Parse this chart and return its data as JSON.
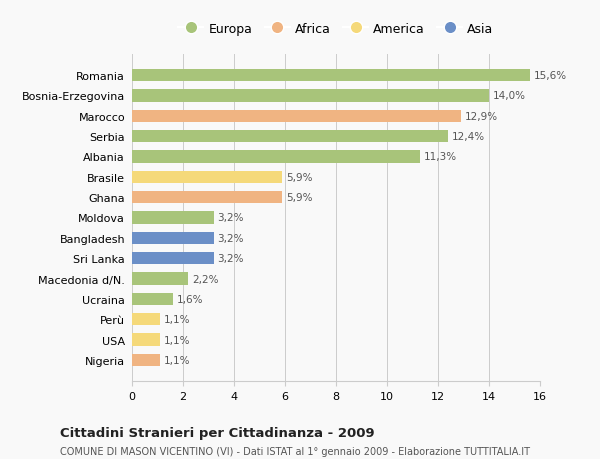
{
  "categories": [
    "Romania",
    "Bosnia-Erzegovina",
    "Marocco",
    "Serbia",
    "Albania",
    "Brasile",
    "Ghana",
    "Moldova",
    "Bangladesh",
    "Sri Lanka",
    "Macedonia d/N.",
    "Ucraina",
    "Perù",
    "USA",
    "Nigeria"
  ],
  "values": [
    15.6,
    14.0,
    12.9,
    12.4,
    11.3,
    5.9,
    5.9,
    3.2,
    3.2,
    3.2,
    2.2,
    1.6,
    1.1,
    1.1,
    1.1
  ],
  "labels": [
    "15,6%",
    "14,0%",
    "12,9%",
    "12,4%",
    "11,3%",
    "5,9%",
    "5,9%",
    "3,2%",
    "3,2%",
    "3,2%",
    "2,2%",
    "1,6%",
    "1,1%",
    "1,1%",
    "1,1%"
  ],
  "colors": [
    "#a8c47a",
    "#a8c47a",
    "#f0b482",
    "#a8c47a",
    "#a8c47a",
    "#f5d97a",
    "#f0b482",
    "#a8c47a",
    "#6b8fc7",
    "#6b8fc7",
    "#a8c47a",
    "#a8c47a",
    "#f5d97a",
    "#f5d97a",
    "#f0b482"
  ],
  "legend_labels": [
    "Europa",
    "Africa",
    "America",
    "Asia"
  ],
  "legend_colors": [
    "#a8c47a",
    "#f0b482",
    "#f5d97a",
    "#6b8fc7"
  ],
  "title": "Cittadini Stranieri per Cittadinanza - 2009",
  "subtitle": "COMUNE DI MASON VICENTINO (VI) - Dati ISTAT al 1° gennaio 2009 - Elaborazione TUTTITALIA.IT",
  "xlim": [
    0,
    16
  ],
  "xticks": [
    0,
    2,
    4,
    6,
    8,
    10,
    12,
    14,
    16
  ],
  "background_color": "#f9f9f9",
  "bar_height": 0.6,
  "grid_color": "#cccccc",
  "figsize": [
    6.0,
    4.6
  ],
  "dpi": 100
}
